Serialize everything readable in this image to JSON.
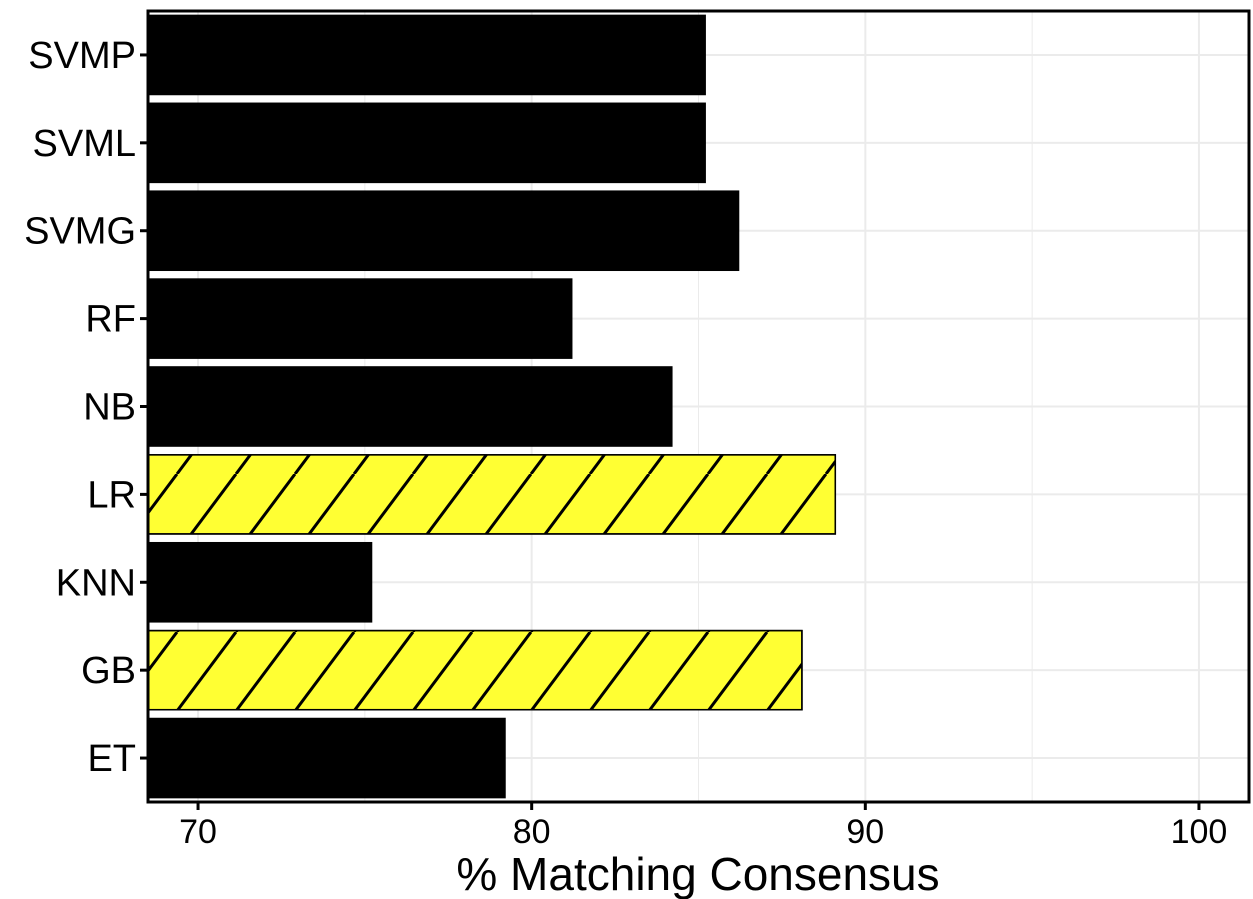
{
  "chart_data": {
    "type": "bar",
    "orientation": "horizontal",
    "categories": [
      "SVMP",
      "SVML",
      "SVMG",
      "RF",
      "NB",
      "LR",
      "KNN",
      "GB",
      "ET"
    ],
    "values": [
      85.2,
      85.2,
      86.2,
      81.2,
      84.2,
      89.1,
      75.2,
      88.1,
      79.2
    ],
    "highlighted": [
      "LR",
      "GB"
    ],
    "title": "",
    "xlabel": "% Matching Consensus",
    "ylabel": "",
    "xlim": [
      68.5,
      101.5
    ],
    "xticks": [
      70,
      80,
      90,
      100
    ],
    "grid": true,
    "legend": "none",
    "colors": {
      "bar": "#000000",
      "highlight": "#ffff33",
      "hatch": "#000000",
      "grid": "#ebebeb",
      "background": "#ffffff"
    }
  }
}
